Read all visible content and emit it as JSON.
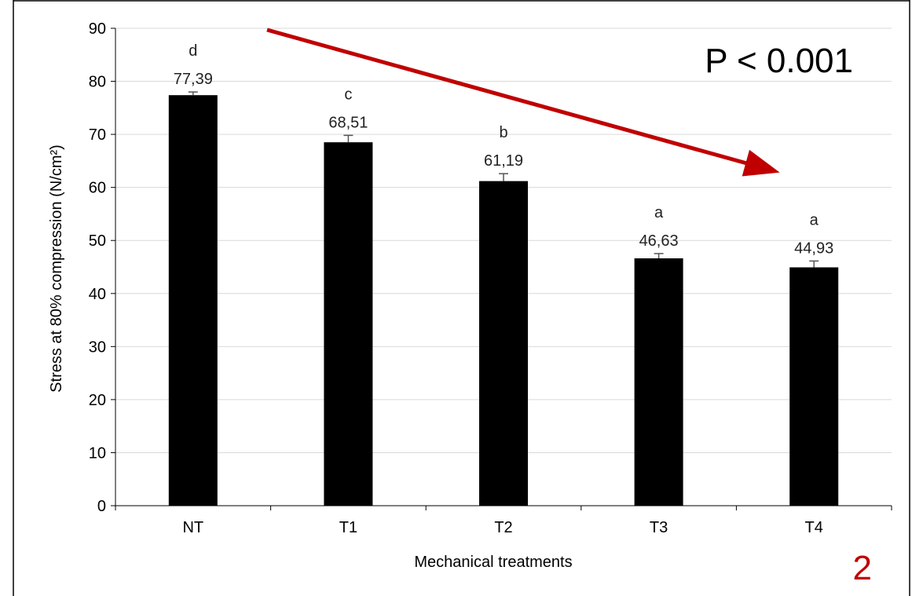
{
  "chart_data": {
    "type": "bar",
    "categories": [
      "NT",
      "T1",
      "T2",
      "T3",
      "T4"
    ],
    "values": [
      77.39,
      68.51,
      61.19,
      46.63,
      44.93
    ],
    "error": [
      0.6,
      1.3,
      1.4,
      0.9,
      1.2
    ],
    "value_labels": [
      "77,39",
      "68,51",
      "61,19",
      "46,63",
      "44,93"
    ],
    "group_letters": [
      "d",
      "c",
      "b",
      "a",
      "a"
    ],
    "xlabel": "Mechanical treatments",
    "ylabel": "Stress at 80% compression (N/cm²)",
    "ylim": [
      0,
      90
    ],
    "yticks": [
      0,
      10,
      20,
      30,
      40,
      50,
      60,
      70,
      80,
      90
    ],
    "grid": true,
    "bar_color": "#000000",
    "annotations": {
      "p_value": "P < 0.001",
      "panel_number": "2",
      "trend_arrow_color": "#c00000"
    }
  }
}
